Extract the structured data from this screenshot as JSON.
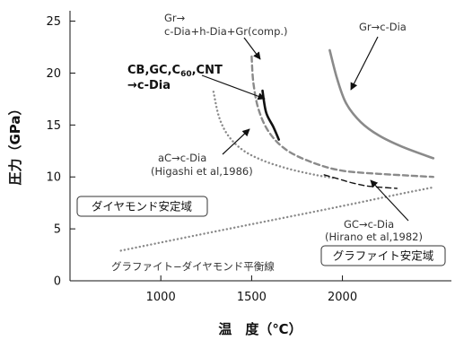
{
  "chart_data": {
    "type": "line",
    "xlabel": "温　度（℃）",
    "ylabel": "圧力（GPa）",
    "xlim": [
      500,
      2600
    ],
    "ylim": [
      0,
      26
    ],
    "x_ticks": [
      1000,
      1500,
      2000
    ],
    "y_ticks": [
      0,
      5,
      10,
      15,
      20,
      25
    ],
    "grid": false,
    "series": [
      {
        "label": "Gr→ c-Dia+h-Dia+Gr(comp.)",
        "style": "dashed-gray",
        "color": "#8a8a8a",
        "points": [
          [
            1500,
            21.6
          ],
          [
            1510,
            19
          ],
          [
            1540,
            16.4
          ],
          [
            1600,
            14.2
          ],
          [
            1700,
            12.5
          ],
          [
            1850,
            11.3
          ],
          [
            2000,
            10.6
          ],
          [
            2200,
            10.3
          ],
          [
            2400,
            10.1
          ],
          [
            2500,
            10.0
          ]
        ]
      },
      {
        "label": "CB,GC,C60,CNT →c-Dia",
        "style": "solid-black",
        "color": "#111111",
        "points": [
          [
            1560,
            18.3
          ],
          [
            1580,
            16.2
          ],
          [
            1620,
            14.8
          ],
          [
            1650,
            13.6
          ]
        ]
      },
      {
        "label": "Gr→c-Dia",
        "style": "solid-gray",
        "color": "#8a8a8a",
        "points": [
          [
            1930,
            22.2
          ],
          [
            1970,
            19.5
          ],
          [
            2020,
            17.1
          ],
          [
            2100,
            15.3
          ],
          [
            2200,
            14.0
          ],
          [
            2330,
            12.9
          ],
          [
            2500,
            11.8
          ]
        ]
      },
      {
        "label": "aC→c-Dia (Higashi et al,1986)",
        "style": "dotted-gray",
        "color": "#8a8a8a",
        "points": [
          [
            1290,
            18.2
          ],
          [
            1320,
            15.8
          ],
          [
            1370,
            14.0
          ],
          [
            1450,
            12.6
          ],
          [
            1560,
            11.6
          ],
          [
            1700,
            10.8
          ],
          [
            1850,
            10.2
          ],
          [
            1950,
            9.9
          ]
        ]
      },
      {
        "label": "GC→c-Dia (Hirano et al,1982)",
        "style": "dashed-black",
        "color": "#111111",
        "points": [
          [
            1900,
            10.2
          ],
          [
            1980,
            9.8
          ],
          [
            2060,
            9.4
          ],
          [
            2150,
            9.1
          ],
          [
            2300,
            8.9
          ]
        ]
      },
      {
        "label": "グラファイト−ダイヤモンド平衡線",
        "style": "dotted-gray",
        "color": "#8a8a8a",
        "points": [
          [
            780,
            2.9
          ],
          [
            1200,
            4.4
          ],
          [
            1600,
            5.8
          ],
          [
            2000,
            7.2
          ],
          [
            2300,
            8.3
          ],
          [
            2500,
            9.0
          ]
        ]
      }
    ],
    "annotations": {
      "gr_comp_1": "Gr→",
      "gr_comp_2": "c-Dia+h-Dia+Gr(comp.)",
      "cb_1": "CB,GC,C",
      "cb_sub": "60",
      "cb_1b": ",CNT",
      "cb_2": "→c-Dia",
      "gr_cdia": "Gr→c-Dia",
      "ac_1": "aC→c-Dia",
      "ac_2": "(Higashi et al,1986)",
      "gc_1": "GC→c-Dia",
      "gc_2": "(Hirano et al,1982)",
      "equilibrium": "グラファイト−ダイヤモンド平衡線"
    },
    "regions": {
      "diamond": "ダイヤモンド安定域",
      "graphite": "グラファイト安定域"
    }
  }
}
